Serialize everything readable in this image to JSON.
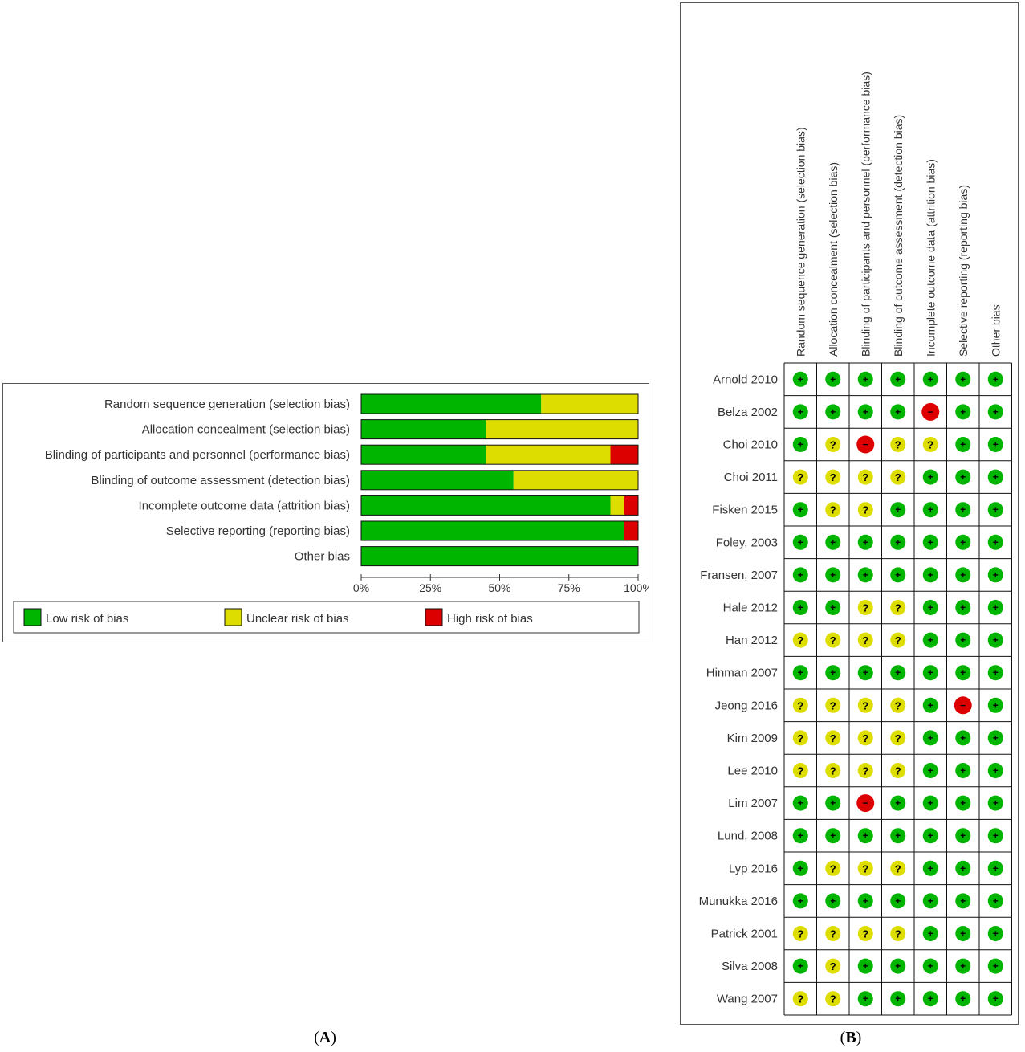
{
  "chart_data": [
    {
      "type": "bar",
      "stacked": true,
      "orientation": "horizontal",
      "categories": [
        "Random sequence generation (selection bias)",
        "Allocation concealment (selection bias)",
        "Blinding of participants and personnel (performance bias)",
        "Blinding of outcome assessment (detection bias)",
        "Incomplete outcome data (attrition bias)",
        "Selective reporting (reporting bias)",
        "Other bias"
      ],
      "series": [
        {
          "name": "Low risk of bias",
          "color": "#00b500",
          "values": [
            65,
            45,
            45,
            55,
            90,
            95,
            100
          ]
        },
        {
          "name": "Unclear risk of bias",
          "color": "#dddd00",
          "values": [
            35,
            55,
            45,
            45,
            5,
            0,
            0
          ]
        },
        {
          "name": "High risk of bias",
          "color": "#dd0000",
          "values": [
            0,
            0,
            10,
            0,
            5,
            5,
            0
          ]
        }
      ],
      "xticks": [
        "0%",
        "25%",
        "50%",
        "75%",
        "100%"
      ],
      "xlim": [
        0,
        100
      ],
      "legend_position": "bottom"
    },
    {
      "type": "table",
      "columns": [
        "Random sequence generation (selection bias)",
        "Allocation concealment (selection bias)",
        "Blinding of participants and personnel (performance bias)",
        "Blinding of outcome assessment (detection bias)",
        "Incomplete outcome data (attrition bias)",
        "Selective reporting (reporting bias)",
        "Other bias"
      ],
      "rows": [
        {
          "study": "Arnold 2010",
          "ratings": [
            "+",
            "+",
            "+",
            "+",
            "+",
            "+",
            "+"
          ]
        },
        {
          "study": "Belza 2002",
          "ratings": [
            "+",
            "+",
            "+",
            "+",
            "-",
            "+",
            "+"
          ]
        },
        {
          "study": "Choi 2010",
          "ratings": [
            "+",
            "?",
            "-",
            "?",
            "?",
            "+",
            "+"
          ]
        },
        {
          "study": "Choi 2011",
          "ratings": [
            "?",
            "?",
            "?",
            "?",
            "+",
            "+",
            "+"
          ]
        },
        {
          "study": "Fisken 2015",
          "ratings": [
            "+",
            "?",
            "?",
            "+",
            "+",
            "+",
            "+"
          ]
        },
        {
          "study": "Foley, 2003",
          "ratings": [
            "+",
            "+",
            "+",
            "+",
            "+",
            "+",
            "+"
          ]
        },
        {
          "study": "Fransen, 2007",
          "ratings": [
            "+",
            "+",
            "+",
            "+",
            "+",
            "+",
            "+"
          ]
        },
        {
          "study": "Hale 2012",
          "ratings": [
            "+",
            "+",
            "?",
            "?",
            "+",
            "+",
            "+"
          ]
        },
        {
          "study": "Han 2012",
          "ratings": [
            "?",
            "?",
            "?",
            "?",
            "+",
            "+",
            "+"
          ]
        },
        {
          "study": "Hinman 2007",
          "ratings": [
            "+",
            "+",
            "+",
            "+",
            "+",
            "+",
            "+"
          ]
        },
        {
          "study": "Jeong 2016",
          "ratings": [
            "?",
            "?",
            "?",
            "?",
            "+",
            "-",
            "+"
          ]
        },
        {
          "study": "Kim 2009",
          "ratings": [
            "?",
            "?",
            "?",
            "?",
            "+",
            "+",
            "+"
          ]
        },
        {
          "study": "Lee 2010",
          "ratings": [
            "?",
            "?",
            "?",
            "?",
            "+",
            "+",
            "+"
          ]
        },
        {
          "study": "Lim 2007",
          "ratings": [
            "+",
            "+",
            "-",
            "+",
            "+",
            "+",
            "+"
          ]
        },
        {
          "study": "Lund, 2008",
          "ratings": [
            "+",
            "+",
            "+",
            "+",
            "+",
            "+",
            "+"
          ]
        },
        {
          "study": "Lyp 2016",
          "ratings": [
            "+",
            "?",
            "?",
            "?",
            "+",
            "+",
            "+"
          ]
        },
        {
          "study": "Munukka 2016",
          "ratings": [
            "+",
            "+",
            "+",
            "+",
            "+",
            "+",
            "+"
          ]
        },
        {
          "study": "Patrick 2001",
          "ratings": [
            "?",
            "?",
            "?",
            "?",
            "+",
            "+",
            "+"
          ]
        },
        {
          "study": "Silva 2008",
          "ratings": [
            "+",
            "?",
            "+",
            "+",
            "+",
            "+",
            "+"
          ]
        },
        {
          "study": "Wang 2007",
          "ratings": [
            "?",
            "?",
            "+",
            "+",
            "+",
            "+",
            "+"
          ]
        }
      ],
      "rating_colors": {
        "+": "#00b500",
        "?": "#dddd00",
        "-": "#dd0000"
      },
      "rating_glyphs": {
        "+": "+",
        "?": "?",
        "-": "−"
      }
    }
  ],
  "panel_labels": {
    "a": {
      "open": "(",
      "letter": "A",
      "close": ")"
    },
    "b": {
      "open": "(",
      "letter": "B",
      "close": ")"
    }
  }
}
